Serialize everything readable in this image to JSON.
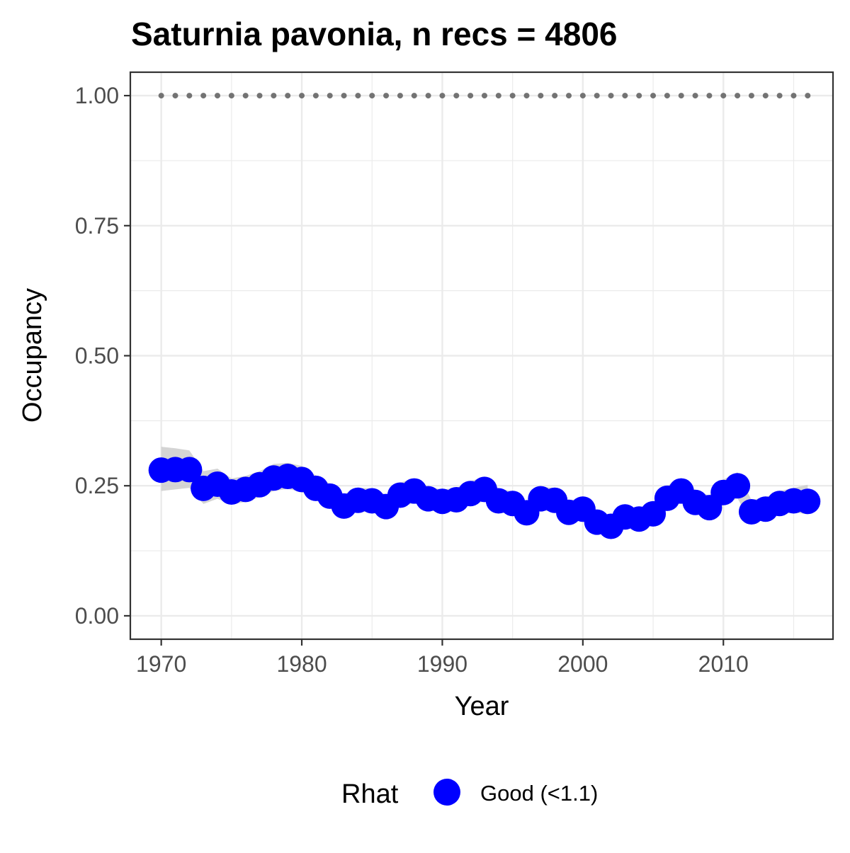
{
  "chart_data": {
    "type": "line",
    "title": "Saturnia pavonia, n recs = 4806",
    "xlabel": "Year",
    "ylabel": "Occupancy",
    "xlim": [
      1967.8,
      2017.8
    ],
    "ylim": [
      -0.045,
      1.045
    ],
    "x_ticks": [
      1970,
      1980,
      1990,
      2000,
      2010
    ],
    "x_tick_labels": [
      "1970",
      "1980",
      "1990",
      "2000",
      "2010"
    ],
    "y_ticks": [
      0.0,
      0.25,
      0.5,
      0.75,
      1.0
    ],
    "y_tick_labels": [
      "0.00",
      "0.25",
      "0.50",
      "0.75",
      "1.00"
    ],
    "grid": true,
    "legend": {
      "title": "Rhat",
      "position": "bottom",
      "entries": [
        {
          "label": "Good (<1.1)",
          "color": "#0000ff"
        }
      ]
    },
    "colors": {
      "points": "#0000ff",
      "ribbon": "#cccccc",
      "reference_dots": "#737373",
      "panel_border": "#333333",
      "grid": "#ebebeb"
    },
    "x": [
      1970,
      1971,
      1972,
      1973,
      1974,
      1975,
      1976,
      1977,
      1978,
      1979,
      1980,
      1981,
      1982,
      1983,
      1984,
      1985,
      1986,
      1987,
      1988,
      1989,
      1990,
      1991,
      1992,
      1993,
      1994,
      1995,
      1996,
      1997,
      1998,
      1999,
      2000,
      2001,
      2002,
      2003,
      2004,
      2005,
      2006,
      2007,
      2008,
      2009,
      2010,
      2011,
      2012,
      2013,
      2014,
      2015,
      2016
    ],
    "series": [
      {
        "values": [
          0.28,
          0.281,
          0.281,
          0.245,
          0.253,
          0.238,
          0.243,
          0.252,
          0.265,
          0.268,
          0.262,
          0.245,
          0.23,
          0.211,
          0.222,
          0.221,
          0.21,
          0.232,
          0.24,
          0.225,
          0.22,
          0.223,
          0.235,
          0.243,
          0.221,
          0.216,
          0.198,
          0.225,
          0.222,
          0.199,
          0.205,
          0.18,
          0.172,
          0.19,
          0.186,
          0.196,
          0.226,
          0.24,
          0.218,
          0.208,
          0.237,
          0.25,
          0.2,
          0.205,
          0.216,
          0.221,
          0.22
        ],
        "lower": [
          0.24,
          0.243,
          0.246,
          0.215,
          0.225,
          0.214,
          0.219,
          0.228,
          0.24,
          0.244,
          0.238,
          0.222,
          0.208,
          0.19,
          0.2,
          0.199,
          0.189,
          0.209,
          0.217,
          0.203,
          0.199,
          0.202,
          0.213,
          0.22,
          0.199,
          0.195,
          0.178,
          0.203,
          0.2,
          0.179,
          0.184,
          0.161,
          0.154,
          0.171,
          0.167,
          0.176,
          0.204,
          0.217,
          0.196,
          0.187,
          0.213,
          0.226,
          0.179,
          0.184,
          0.194,
          0.199,
          0.195
        ],
        "upper": [
          0.325,
          0.322,
          0.318,
          0.278,
          0.283,
          0.264,
          0.269,
          0.278,
          0.292,
          0.294,
          0.288,
          0.27,
          0.254,
          0.234,
          0.246,
          0.245,
          0.233,
          0.256,
          0.264,
          0.248,
          0.243,
          0.246,
          0.259,
          0.267,
          0.245,
          0.239,
          0.22,
          0.248,
          0.246,
          0.221,
          0.228,
          0.201,
          0.192,
          0.211,
          0.207,
          0.218,
          0.25,
          0.265,
          0.242,
          0.231,
          0.262,
          0.276,
          0.223,
          0.228,
          0.24,
          0.246,
          0.252
        ]
      }
    ],
    "reference_line": {
      "y": 1.0,
      "x_start": 1970,
      "x_end": 2016
    }
  }
}
